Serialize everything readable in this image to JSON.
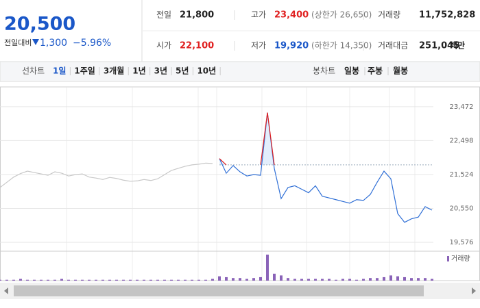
{
  "header": {
    "price": "20,500",
    "change_label": "전일대비",
    "change": "1,300",
    "change_pct": "−5.96%",
    "stats": [
      {
        "label": "전일",
        "value": "21,800"
      },
      {
        "label": "고가",
        "value": "23,400",
        "note": "(상한가 26,650)"
      },
      {
        "label": "거래량",
        "value": "11,752,828"
      },
      {
        "label": "시가",
        "value": "22,100"
      },
      {
        "label": "저가",
        "value": "19,920",
        "note": "(하한가 14,350)"
      },
      {
        "label": "거래대금",
        "value": "251,045",
        "note": "백만"
      }
    ]
  },
  "tabs": {
    "line": {
      "label": "선차트",
      "items": [
        "1일",
        "1주일",
        "3개월",
        "1년",
        "3년",
        "5년",
        "10년"
      ],
      "selected": 0
    },
    "candle": {
      "label": "봉차트",
      "items": [
        "일봉",
        "주봉",
        "월봉"
      ]
    }
  },
  "chart_data": {
    "type": "line",
    "ylim": [
      19360,
      23980
    ],
    "yticks": [
      {
        "value": 19576,
        "label": "19,576"
      },
      {
        "value": 20550,
        "label": "20,550"
      },
      {
        "value": 21524,
        "label": "21,524"
      },
      {
        "value": 22498,
        "label": "22,498"
      },
      {
        "value": 23472,
        "label": "23,472"
      }
    ],
    "base_line": 21800,
    "series": [
      {
        "color": "#c8c8c8",
        "values": [
          21150,
          21300,
          21450,
          21550,
          21620,
          21580,
          21540,
          21500,
          21600,
          21560,
          21480,
          21520,
          21540,
          21450,
          21420,
          21380,
          21440,
          21410,
          21360,
          21330,
          21340,
          21380,
          21350,
          21400,
          21520,
          21640,
          21700,
          21760,
          21800,
          21820,
          21850,
          21840,
          null,
          null,
          null,
          null,
          null,
          null,
          null,
          null,
          null,
          null,
          null,
          null,
          null,
          null,
          null,
          null,
          null,
          null,
          null,
          null,
          null,
          null,
          null,
          null,
          null,
          null,
          null,
          null,
          null,
          null,
          null,
          null
        ]
      },
      {
        "color": "#2f6fd6",
        "up_color": "#e02020",
        "values": [
          null,
          null,
          null,
          null,
          null,
          null,
          null,
          null,
          null,
          null,
          null,
          null,
          null,
          null,
          null,
          null,
          null,
          null,
          null,
          null,
          null,
          null,
          null,
          null,
          null,
          null,
          null,
          null,
          null,
          null,
          null,
          null,
          21980,
          21560,
          21780,
          21600,
          21480,
          21520,
          21500,
          23300,
          21700,
          20830,
          21150,
          21200,
          21100,
          21000,
          21200,
          20900,
          20850,
          20800,
          20750,
          20700,
          20800,
          20780,
          20950,
          21300,
          21620,
          21400,
          20400,
          20150,
          20250,
          20300,
          20600,
          20500
        ]
      }
    ],
    "volume": {
      "name": "거래량",
      "color": "#8a63b8",
      "values": [
        1,
        1,
        1,
        2,
        1,
        1,
        1,
        1,
        1,
        2,
        1,
        1,
        1,
        1,
        1,
        1,
        1,
        1,
        1,
        1,
        1,
        1,
        1,
        1,
        1,
        1,
        1,
        1,
        1,
        1,
        1,
        2,
        5,
        4,
        3,
        3,
        2,
        3,
        4,
        30,
        8,
        6,
        3,
        2,
        2,
        2,
        2,
        2,
        2,
        1,
        2,
        2,
        1,
        2,
        3,
        3,
        4,
        6,
        5,
        4,
        3,
        3,
        3,
        2
      ]
    }
  }
}
